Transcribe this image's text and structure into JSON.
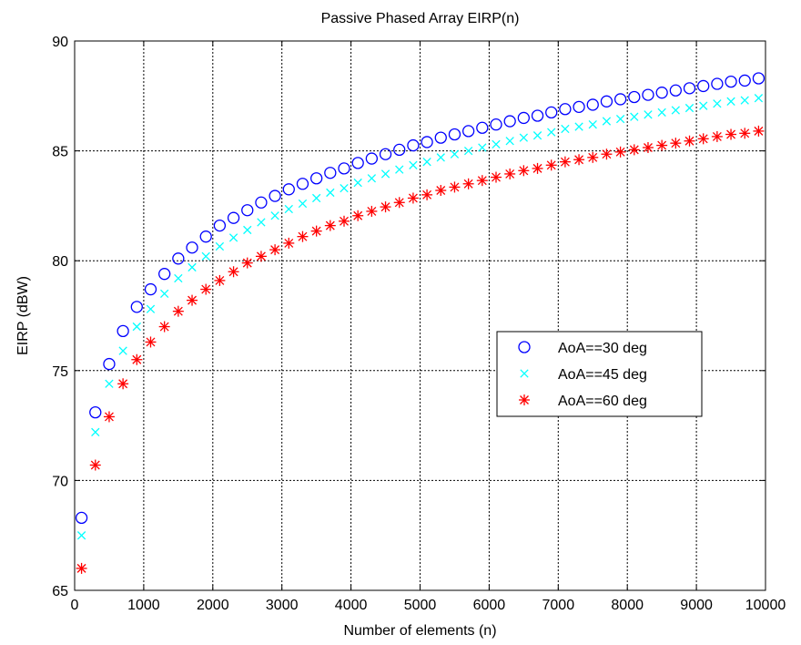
{
  "chart_data": {
    "type": "scatter",
    "title": "Passive Phased Array EIRP(n)",
    "xlabel": "Number of elements (n)",
    "ylabel": "EIRP (dBW)",
    "xlim": [
      0,
      10000
    ],
    "ylim": [
      65,
      90
    ],
    "xticks": [
      "0",
      "1000",
      "2000",
      "3000",
      "4000",
      "5000",
      "6000",
      "7000",
      "8000",
      "9000",
      "10000"
    ],
    "yticks": [
      "65",
      "70",
      "75",
      "80",
      "85",
      "90"
    ],
    "grid": true,
    "legend_position": "center-right",
    "x": [
      100,
      300,
      500,
      700,
      900,
      1100,
      1300,
      1500,
      1700,
      1900,
      2100,
      2300,
      2500,
      2700,
      2900,
      3100,
      3300,
      3500,
      3700,
      3900,
      4100,
      4300,
      4500,
      4700,
      4900,
      5100,
      5300,
      5500,
      5700,
      5900,
      6100,
      6300,
      6500,
      6700,
      6900,
      7100,
      7300,
      7500,
      7700,
      7900,
      8100,
      8300,
      8500,
      8700,
      8900,
      9100,
      9300,
      9500,
      9700,
      9900
    ],
    "series": [
      {
        "name": "AoA==30 deg",
        "marker": "circle",
        "color": "#0000ff",
        "values": [
          68.3,
          73.1,
          75.3,
          76.8,
          77.9,
          78.7,
          79.4,
          80.1,
          80.6,
          81.1,
          81.6,
          81.95,
          82.3,
          82.65,
          82.95,
          83.25,
          83.5,
          83.75,
          84.0,
          84.2,
          84.45,
          84.65,
          84.85,
          85.05,
          85.25,
          85.4,
          85.6,
          85.75,
          85.9,
          86.05,
          86.2,
          86.35,
          86.5,
          86.6,
          86.75,
          86.9,
          87.0,
          87.1,
          87.25,
          87.35,
          87.45,
          87.55,
          87.65,
          87.75,
          87.85,
          87.95,
          88.05,
          88.15,
          88.2,
          88.3
        ]
      },
      {
        "name": "AoA==45 deg",
        "marker": "x",
        "color": "#00ffff",
        "values": [
          67.5,
          72.2,
          74.4,
          75.9,
          77.0,
          77.8,
          78.5,
          79.2,
          79.7,
          80.2,
          80.65,
          81.05,
          81.4,
          81.75,
          82.05,
          82.35,
          82.6,
          82.85,
          83.1,
          83.3,
          83.55,
          83.75,
          83.95,
          84.15,
          84.35,
          84.5,
          84.7,
          84.85,
          85.0,
          85.15,
          85.3,
          85.45,
          85.6,
          85.7,
          85.85,
          86.0,
          86.1,
          86.2,
          86.35,
          86.45,
          86.55,
          86.65,
          86.75,
          86.85,
          86.95,
          87.05,
          87.15,
          87.25,
          87.3,
          87.4
        ]
      },
      {
        "name": "AoA==60 deg",
        "marker": "star",
        "color": "#ff0000",
        "values": [
          66.0,
          70.7,
          72.9,
          74.4,
          75.5,
          76.3,
          77.0,
          77.7,
          78.2,
          78.7,
          79.1,
          79.5,
          79.9,
          80.2,
          80.5,
          80.8,
          81.1,
          81.35,
          81.6,
          81.8,
          82.05,
          82.25,
          82.45,
          82.65,
          82.85,
          83.0,
          83.2,
          83.35,
          83.5,
          83.65,
          83.8,
          83.95,
          84.1,
          84.2,
          84.35,
          84.5,
          84.6,
          84.7,
          84.85,
          84.95,
          85.05,
          85.15,
          85.25,
          85.35,
          85.45,
          85.55,
          85.65,
          85.75,
          85.8,
          85.9
        ]
      }
    ]
  }
}
